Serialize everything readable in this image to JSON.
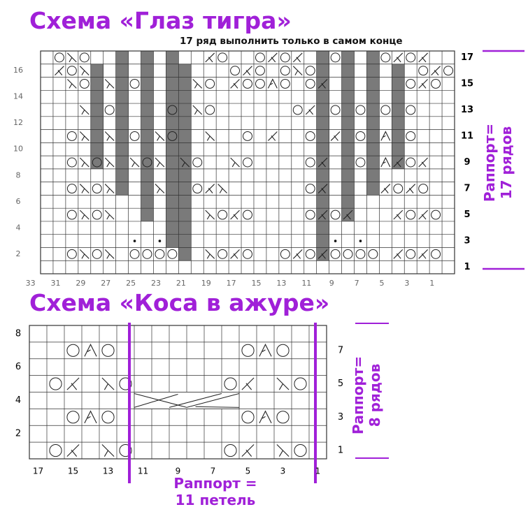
{
  "chart1": {
    "title": "Схема «Глаз тигра»",
    "note": "17 ряд выполнить только в самом конце",
    "left_row_numbers": [
      "16",
      "14",
      "12",
      "10",
      "8",
      "6",
      "4",
      "2"
    ],
    "right_row_numbers": [
      "17",
      "15",
      "13",
      "11",
      "9",
      "7",
      "5",
      "3",
      "1"
    ],
    "bottom_stitch_numbers": [
      "33",
      "31",
      "29",
      "27",
      "25",
      "23",
      "21",
      "19",
      "17",
      "15",
      "13",
      "11",
      "9",
      "7",
      "5",
      "3",
      "1"
    ],
    "rapport_line1": "Раппорт=",
    "rapport_line2": "17 рядов"
  },
  "chart2": {
    "title": "Схема «Коса в ажуре»",
    "left_row_numbers": [
      "8",
      "6",
      "4",
      "2"
    ],
    "right_row_numbers": [
      "7",
      "5",
      "3",
      "1"
    ],
    "bottom_stitch_numbers": [
      "17",
      "15",
      "13",
      "11",
      "9",
      "7",
      "5",
      "3",
      "1"
    ],
    "rapport_rows_line1": "Раппорт=",
    "rapport_rows_line2": "8 рядов",
    "rapport_stitches_line1": "Раппорт =",
    "rapport_stitches_line2": "11 петель"
  },
  "colors": {
    "accent": "#a020d8",
    "grid": "#333333",
    "dark_cell": "#7a7a7a"
  },
  "symbols": [
    "yarn-over-circle",
    "left-decrease-slash",
    "right-decrease-slash",
    "double-decrease",
    "bobble-dot",
    "cable-cross"
  ]
}
